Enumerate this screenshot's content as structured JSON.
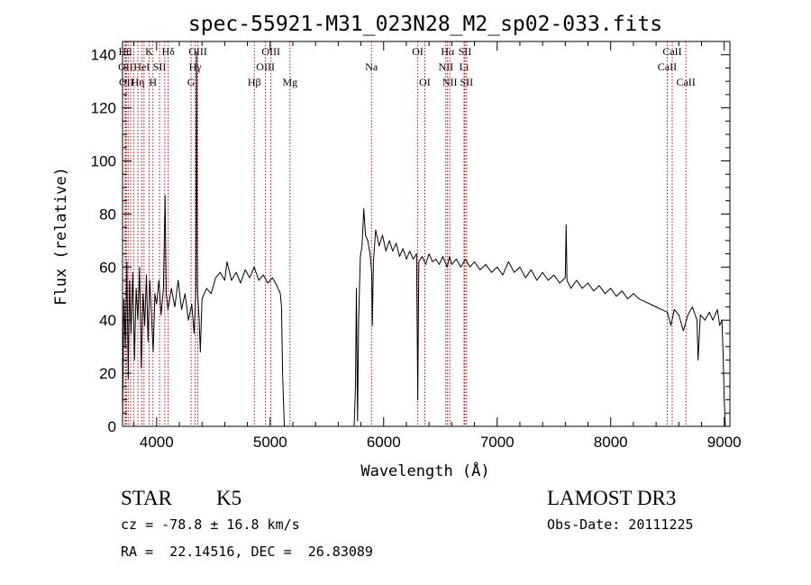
{
  "chart_data": {
    "type": "line",
    "title": "spec-55921-M31_023N28_M2_sp02-033.fits",
    "xlabel": "Wavelength (Å)",
    "ylabel": "Flux (relative)",
    "xlim": [
      3700,
      9050
    ],
    "ylim": [
      0,
      145
    ],
    "xticks": [
      4000,
      5000,
      6000,
      7000,
      8000,
      9000
    ],
    "yticks": [
      0,
      20,
      40,
      60,
      80,
      100,
      120,
      140
    ],
    "grid": false,
    "series": [
      {
        "points": [
          [
            3700,
            2
          ],
          [
            3712,
            48
          ],
          [
            3725,
            30
          ],
          [
            3738,
            62
          ],
          [
            3750,
            18
          ],
          [
            3762,
            55
          ],
          [
            3775,
            35
          ],
          [
            3790,
            58
          ],
          [
            3805,
            25
          ],
          [
            3820,
            52
          ],
          [
            3835,
            40
          ],
          [
            3850,
            60
          ],
          [
            3865,
            22
          ],
          [
            3880,
            50
          ],
          [
            3895,
            38
          ],
          [
            3910,
            57
          ],
          [
            3925,
            32
          ],
          [
            3940,
            55
          ],
          [
            3955,
            42
          ],
          [
            3970,
            28
          ],
          [
            3985,
            50
          ],
          [
            4000,
            46
          ],
          [
            4020,
            55
          ],
          [
            4040,
            42
          ],
          [
            4060,
            52
          ],
          [
            4075,
            87
          ],
          [
            4085,
            50
          ],
          [
            4100,
            44
          ],
          [
            4130,
            52
          ],
          [
            4160,
            45
          ],
          [
            4190,
            55
          ],
          [
            4220,
            44
          ],
          [
            4250,
            50
          ],
          [
            4280,
            40
          ],
          [
            4310,
            46
          ],
          [
            4330,
            35
          ],
          [
            4345,
            50
          ],
          [
            4352,
            141
          ],
          [
            4360,
            52
          ],
          [
            4375,
            40
          ],
          [
            4385,
            28
          ],
          [
            4400,
            48
          ],
          [
            4440,
            52
          ],
          [
            4480,
            50
          ],
          [
            4520,
            56
          ],
          [
            4560,
            58
          ],
          [
            4600,
            55
          ],
          [
            4620,
            62
          ],
          [
            4660,
            55
          ],
          [
            4700,
            58
          ],
          [
            4740,
            54
          ],
          [
            4780,
            59
          ],
          [
            4820,
            56
          ],
          [
            4860,
            60
          ],
          [
            4900,
            55
          ],
          [
            4940,
            57
          ],
          [
            4980,
            54
          ],
          [
            5020,
            56
          ],
          [
            5060,
            53
          ],
          [
            5090,
            50
          ],
          [
            5100,
            45
          ],
          [
            5110,
            20
          ],
          [
            5125,
            0
          ],
          [
            5740,
            0
          ],
          [
            5752,
            15
          ],
          [
            5760,
            52
          ],
          [
            5770,
            2
          ],
          [
            5780,
            40
          ],
          [
            5795,
            64
          ],
          [
            5810,
            68
          ],
          [
            5825,
            82
          ],
          [
            5840,
            72
          ],
          [
            5860,
            70
          ],
          [
            5880,
            65
          ],
          [
            5895,
            58
          ],
          [
            5900,
            38
          ],
          [
            5910,
            62
          ],
          [
            5930,
            74
          ],
          [
            5960,
            68
          ],
          [
            5990,
            72
          ],
          [
            6020,
            66
          ],
          [
            6050,
            70
          ],
          [
            6080,
            66
          ],
          [
            6110,
            69
          ],
          [
            6140,
            64
          ],
          [
            6170,
            67
          ],
          [
            6200,
            63
          ],
          [
            6230,
            66
          ],
          [
            6260,
            63
          ],
          [
            6290,
            65
          ],
          [
            6300,
            10
          ],
          [
            6310,
            62
          ],
          [
            6340,
            64
          ],
          [
            6370,
            61
          ],
          [
            6400,
            65
          ],
          [
            6430,
            62
          ],
          [
            6460,
            63
          ],
          [
            6490,
            61
          ],
          [
            6520,
            64
          ],
          [
            6560,
            60
          ],
          [
            6580,
            64
          ],
          [
            6600,
            61
          ],
          [
            6640,
            63
          ],
          [
            6680,
            60
          ],
          [
            6720,
            63
          ],
          [
            6760,
            60
          ],
          [
            6800,
            62
          ],
          [
            6850,
            59
          ],
          [
            6900,
            61
          ],
          [
            6950,
            58
          ],
          [
            7000,
            60
          ],
          [
            7050,
            57
          ],
          [
            7100,
            62
          ],
          [
            7150,
            58
          ],
          [
            7200,
            60
          ],
          [
            7250,
            56
          ],
          [
            7300,
            59
          ],
          [
            7350,
            55
          ],
          [
            7400,
            58
          ],
          [
            7450,
            55
          ],
          [
            7500,
            57
          ],
          [
            7550,
            54
          ],
          [
            7600,
            56
          ],
          [
            7608,
            76
          ],
          [
            7615,
            55
          ],
          [
            7650,
            52
          ],
          [
            7700,
            55
          ],
          [
            7750,
            52
          ],
          [
            7800,
            54
          ],
          [
            7850,
            51
          ],
          [
            7900,
            53
          ],
          [
            7950,
            50
          ],
          [
            8000,
            52
          ],
          [
            8050,
            49
          ],
          [
            8100,
            51
          ],
          [
            8150,
            48
          ],
          [
            8200,
            50
          ],
          [
            8250,
            48
          ],
          [
            8300,
            47
          ],
          [
            8350,
            46
          ],
          [
            8400,
            45
          ],
          [
            8450,
            44
          ],
          [
            8500,
            43
          ],
          [
            8530,
            38
          ],
          [
            8560,
            44
          ],
          [
            8600,
            42
          ],
          [
            8640,
            36
          ],
          [
            8680,
            42
          ],
          [
            8720,
            45
          ],
          [
            8760,
            40
          ],
          [
            8770,
            25
          ],
          [
            8790,
            42
          ],
          [
            8830,
            40
          ],
          [
            8870,
            43
          ],
          [
            8900,
            40
          ],
          [
            8940,
            44
          ],
          [
            8960,
            38
          ],
          [
            8980,
            40
          ],
          [
            8990,
            28
          ],
          [
            9000,
            10
          ],
          [
            9010,
            0
          ]
        ]
      }
    ],
    "line_markers": [
      {
        "x": 3722,
        "label": "Hθ",
        "row": 0
      },
      {
        "x": 3727,
        "label": "OII",
        "row": 1
      },
      {
        "x": 3734,
        "label": "OII",
        "row": 2
      },
      {
        "x": 3750,
        "label": "",
        "row": 0
      },
      {
        "x": 3771,
        "label": "",
        "row": 0
      },
      {
        "x": 3798,
        "label": "",
        "row": 0
      },
      {
        "x": 3835,
        "label": "Hη",
        "row": 2
      },
      {
        "x": 3869,
        "label": "HeI",
        "row": 1
      },
      {
        "x": 3889,
        "label": "",
        "row": 0
      },
      {
        "x": 3934,
        "label": "K",
        "row": 0
      },
      {
        "x": 3968,
        "label": "H",
        "row": 2
      },
      {
        "x": 4026,
        "label": "SII",
        "row": 1
      },
      {
        "x": 4102,
        "label": "Hδ",
        "row": 0
      },
      {
        "x": 4072,
        "label": "",
        "row": 0
      },
      {
        "x": 4304,
        "label": "G",
        "row": 2
      },
      {
        "x": 4340,
        "label": "Hγ",
        "row": 1
      },
      {
        "x": 4363,
        "label": "OIII",
        "row": 0
      },
      {
        "x": 4861,
        "label": "Hβ",
        "row": 2
      },
      {
        "x": 4959,
        "label": "OIII",
        "row": 1
      },
      {
        "x": 5007,
        "label": "OIII",
        "row": 0
      },
      {
        "x": 5175,
        "label": "Mg",
        "row": 2
      },
      {
        "x": 5893,
        "label": "Na",
        "row": 1
      },
      {
        "x": 6300,
        "label": "OI",
        "row": 0
      },
      {
        "x": 6363,
        "label": "OI",
        "row": 2
      },
      {
        "x": 6548,
        "label": "NII",
        "row": 1
      },
      {
        "x": 6563,
        "label": "Hα",
        "row": 0
      },
      {
        "x": 6583,
        "label": "NII",
        "row": 2
      },
      {
        "x": 6708,
        "label": "Li",
        "row": 1
      },
      {
        "x": 6716,
        "label": "SII",
        "row": 0
      },
      {
        "x": 6731,
        "label": "SII",
        "row": 2
      },
      {
        "x": 8498,
        "label": "CaII",
        "row": 1
      },
      {
        "x": 8542,
        "label": "CaII",
        "row": 0
      },
      {
        "x": 8662,
        "label": "CaII",
        "row": 2
      }
    ]
  },
  "info": {
    "class": "STAR",
    "subclass": "K5",
    "survey": "LAMOST DR3",
    "cz": "cz = -78.8 ± 16.8 km/s",
    "obs_date": "Obs-Date: 20111225",
    "coords": "RA =  22.14516, DEC =  26.83089"
  },
  "colors": {
    "marker_line": "#cc0000",
    "spectrum": "#000000",
    "axis": "#000000"
  }
}
